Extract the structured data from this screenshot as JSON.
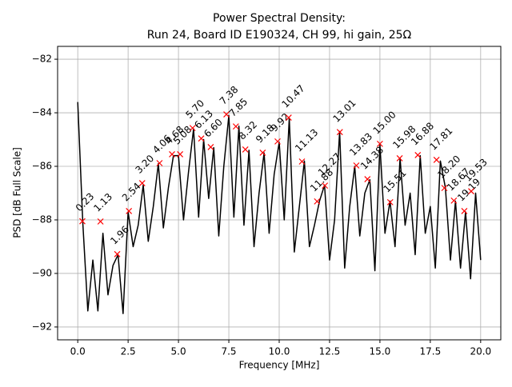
{
  "chart_data": {
    "type": "line",
    "title": "Power Spectral Density:",
    "subtitle": "Run 24, Board ID E190324, CH 99, hi gain, 25Ω",
    "xlabel": "Frequency [MHz]",
    "ylabel": "PSD [dB Full Scale]",
    "xlim": [
      -1.0,
      21.0
    ],
    "ylim": [
      -92.48,
      -81.52
    ],
    "xticks": [
      {
        "value": 0,
        "label": "0.0"
      },
      2.5,
      {
        "value": 5,
        "label": "5.0"
      },
      7.5,
      {
        "value": 10,
        "label": "10.0"
      },
      12.5,
      {
        "value": 15,
        "label": "15.0"
      },
      17.5,
      {
        "value": 20,
        "label": "20.0"
      }
    ],
    "yticks": [
      {
        "value": -92,
        "label": "−92"
      },
      {
        "value": -90,
        "label": "−90"
      },
      {
        "value": -88,
        "label": "−88"
      },
      {
        "value": -86,
        "label": "−86"
      },
      {
        "value": -84,
        "label": "−84"
      },
      {
        "value": -82,
        "label": "−82"
      }
    ],
    "grid": true,
    "series": [
      {
        "color": "#000000",
        "x": [
          0,
          0.25,
          0.5,
          0.75,
          1,
          1.25,
          1.5,
          1.75,
          2,
          2.25,
          2.5,
          2.75,
          3,
          3.25,
          3.5,
          3.75,
          4,
          4.25,
          4.5,
          4.75,
          5,
          5.25,
          5.5,
          5.75,
          6,
          6.25,
          6.5,
          6.75,
          7,
          7.25,
          7.5,
          7.75,
          8,
          8.25,
          8.5,
          8.75,
          9,
          9.25,
          9.5,
          9.75,
          10,
          10.25,
          10.5,
          10.75,
          11,
          11.25,
          11.5,
          11.75,
          12,
          12.25,
          12.5,
          12.75,
          13,
          13.25,
          13.5,
          13.75,
          14,
          14.25,
          14.5,
          14.75,
          15,
          15.25,
          15.5,
          15.75,
          16,
          16.25,
          16.5,
          16.75,
          17,
          17.25,
          17.5,
          17.75,
          18,
          18.25,
          18.5,
          18.75,
          19,
          19.25,
          19.5,
          19.75,
          20
        ],
        "values": [
          -83.6,
          -88.1,
          -91.4,
          -89.5,
          -91.4,
          -88.5,
          -90.8,
          -89.7,
          -89.3,
          -91.5,
          -87.7,
          -89.0,
          -88.2,
          -86.7,
          -88.8,
          -87.5,
          -85.9,
          -88.3,
          -86.8,
          -85.6,
          -85.6,
          -88.0,
          -86.2,
          -84.6,
          -87.9,
          -85.0,
          -87.2,
          -85.3,
          -88.6,
          -86.0,
          -84.1,
          -87.9,
          -84.5,
          -88.2,
          -85.4,
          -89.0,
          -87.0,
          -85.5,
          -88.5,
          -86.3,
          -85.1,
          -88.0,
          -84.2,
          -89.2,
          -87.5,
          -85.8,
          -89.0,
          -88.2,
          -87.3,
          -86.7,
          -89.5,
          -88.0,
          -84.7,
          -89.8,
          -87.5,
          -86.0,
          -88.6,
          -87.0,
          -86.5,
          -89.9,
          -85.2,
          -88.5,
          -87.3,
          -89.0,
          -85.7,
          -88.2,
          -87.0,
          -89.3,
          -85.6,
          -88.5,
          -87.5,
          -89.8,
          -85.8,
          -86.8,
          -89.5,
          -87.3,
          -89.8,
          -87.7,
          -90.2,
          -87.0,
          -89.5
        ]
      },
      {
        "type": "scatter",
        "color": "#ff0000",
        "x": [
          0.23,
          1.13,
          1.96,
          2.54,
          3.2,
          4.06,
          4.68,
          5.08,
          5.7,
          6.13,
          6.6,
          7.38,
          7.85,
          8.32,
          9.18,
          9.92,
          10.47,
          11.13,
          11.88,
          12.27,
          13.01,
          13.83,
          14.38,
          15.0,
          15.51,
          15.98,
          16.88,
          17.81,
          18.2,
          18.67,
          19.19,
          19.53
        ],
        "values": [
          -88.05,
          -88.06,
          -89.28,
          -87.67,
          -86.63,
          -85.88,
          -85.55,
          -85.55,
          -84.57,
          -84.96,
          -85.28,
          -84.06,
          -84.51,
          -85.37,
          -85.49,
          -85.07,
          -84.18,
          -85.82,
          -87.31,
          -86.72,
          -84.72,
          -85.97,
          -86.48,
          -85.16,
          -87.34,
          -85.7,
          -85.58,
          -85.76,
          -86.81,
          -87.28,
          -87.67,
          -86.93
        ],
        "value_labels": [
          "0.23",
          "1.13",
          "1.96",
          "2.54",
          "3.20",
          "4.06",
          "4.68",
          "5.08",
          "5.70",
          "6.13",
          "6.60",
          "7.38",
          "7.85",
          "8.32",
          "9.18",
          "9.92",
          "10.47",
          "11.13",
          "11.88",
          "12.27",
          "13.01",
          "13.83",
          "14.38",
          "15.00",
          "15.51",
          "15.98",
          "16.88",
          "17.81",
          "18.20",
          "18.67",
          "19.19",
          "19.53"
        ]
      }
    ]
  }
}
